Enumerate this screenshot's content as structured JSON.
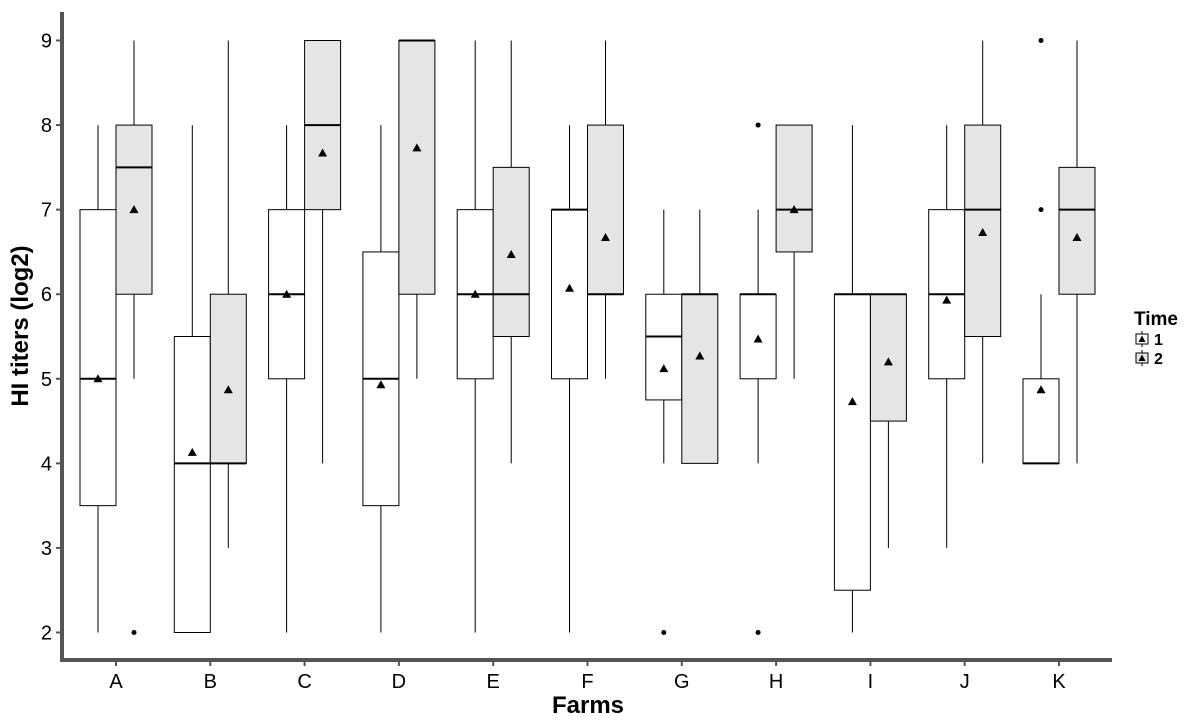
{
  "chart_data": {
    "type": "box",
    "title": "",
    "xlabel": "Farms",
    "ylabel": "HI titers (log2)",
    "ylim": [
      1.6,
      9.3
    ],
    "yticks": [
      2,
      3,
      4,
      5,
      6,
      7,
      8,
      9
    ],
    "grid": false,
    "categories": [
      "A",
      "B",
      "C",
      "D",
      "E",
      "F",
      "G",
      "H",
      "I",
      "J",
      "K"
    ],
    "legend": {
      "title": "Time",
      "position": "right",
      "entries": [
        "1",
        "2"
      ]
    },
    "colors": {
      "time1_fill": "#ffffff",
      "time2_fill": "#e5e5e5",
      "stroke": "#000000",
      "axis": "#555555"
    },
    "series": [
      {
        "name": "1",
        "boxes": [
          {
            "category": "A",
            "whisker_low": 2,
            "q1": 3.5,
            "median": 5,
            "q3": 7,
            "whisker_high": 8,
            "mean": 5,
            "outliers": []
          },
          {
            "category": "B",
            "whisker_low": 2,
            "q1": 2,
            "median": 4,
            "q3": 5.5,
            "whisker_high": 8,
            "mean": 4.13,
            "outliers": []
          },
          {
            "category": "C",
            "whisker_low": 2,
            "q1": 5,
            "median": 6,
            "q3": 7,
            "whisker_high": 8,
            "mean": 6,
            "outliers": []
          },
          {
            "category": "D",
            "whisker_low": 2,
            "q1": 3.5,
            "median": 5,
            "q3": 6.5,
            "whisker_high": 8,
            "mean": 4.93,
            "outliers": []
          },
          {
            "category": "E",
            "whisker_low": 2,
            "q1": 5,
            "median": 6,
            "q3": 7,
            "whisker_high": 9,
            "mean": 6,
            "outliers": []
          },
          {
            "category": "F",
            "whisker_low": 2,
            "q1": 5,
            "median": 7,
            "q3": 7,
            "whisker_high": 8,
            "mean": 6.07,
            "outliers": []
          },
          {
            "category": "G",
            "whisker_low": 4,
            "q1": 4.75,
            "median": 5.5,
            "q3": 6,
            "whisker_high": 7,
            "mean": 5.12,
            "outliers": [
              2
            ]
          },
          {
            "category": "H",
            "whisker_low": 4,
            "q1": 5,
            "median": 6,
            "q3": 6,
            "whisker_high": 7,
            "mean": 5.47,
            "outliers": [
              2,
              8
            ]
          },
          {
            "category": "I",
            "whisker_low": 2,
            "q1": 2.5,
            "median": 6,
            "q3": 6,
            "whisker_high": 8,
            "mean": 4.73,
            "outliers": []
          },
          {
            "category": "J",
            "whisker_low": 3,
            "q1": 5,
            "median": 6,
            "q3": 7,
            "whisker_high": 8,
            "mean": 5.93,
            "outliers": []
          },
          {
            "category": "K",
            "whisker_low": 4,
            "q1": 4,
            "median": 4,
            "q3": 5,
            "whisker_high": 6,
            "mean": 4.87,
            "outliers": [
              7,
              9
            ]
          }
        ]
      },
      {
        "name": "2",
        "boxes": [
          {
            "category": "A",
            "whisker_low": 5,
            "q1": 6,
            "median": 7.5,
            "q3": 8,
            "whisker_high": 9,
            "mean": 7,
            "outliers": [
              2
            ]
          },
          {
            "category": "B",
            "whisker_low": 3,
            "q1": 4,
            "median": 4,
            "q3": 6,
            "whisker_high": 9,
            "mean": 4.87,
            "outliers": []
          },
          {
            "category": "C",
            "whisker_low": 4,
            "q1": 7,
            "median": 8,
            "q3": 9,
            "whisker_high": 9,
            "mean": 7.67,
            "outliers": []
          },
          {
            "category": "D",
            "whisker_low": 5,
            "q1": 6,
            "median": 9,
            "q3": 9,
            "whisker_high": 9,
            "mean": 7.73,
            "outliers": []
          },
          {
            "category": "E",
            "whisker_low": 4,
            "q1": 5.5,
            "median": 6,
            "q3": 7.5,
            "whisker_high": 9,
            "mean": 6.47,
            "outliers": []
          },
          {
            "category": "F",
            "whisker_low": 5,
            "q1": 6,
            "median": 6,
            "q3": 8,
            "whisker_high": 9,
            "mean": 6.67,
            "outliers": []
          },
          {
            "category": "G",
            "whisker_low": 4,
            "q1": 4,
            "median": 6,
            "q3": 6,
            "whisker_high": 7,
            "mean": 5.27,
            "outliers": []
          },
          {
            "category": "H",
            "whisker_low": 5,
            "q1": 6.5,
            "median": 7,
            "q3": 8,
            "whisker_high": 8,
            "mean": 7,
            "outliers": []
          },
          {
            "category": "I",
            "whisker_low": 3,
            "q1": 4.5,
            "median": 6,
            "q3": 6,
            "whisker_high": 6,
            "mean": 5.2,
            "outliers": []
          },
          {
            "category": "J",
            "whisker_low": 4,
            "q1": 5.5,
            "median": 7,
            "q3": 8,
            "whisker_high": 9,
            "mean": 6.73,
            "outliers": []
          },
          {
            "category": "K",
            "whisker_low": 4,
            "q1": 6,
            "median": 7,
            "q3": 7.5,
            "whisker_high": 9,
            "mean": 6.67,
            "outliers": []
          }
        ]
      }
    ]
  }
}
